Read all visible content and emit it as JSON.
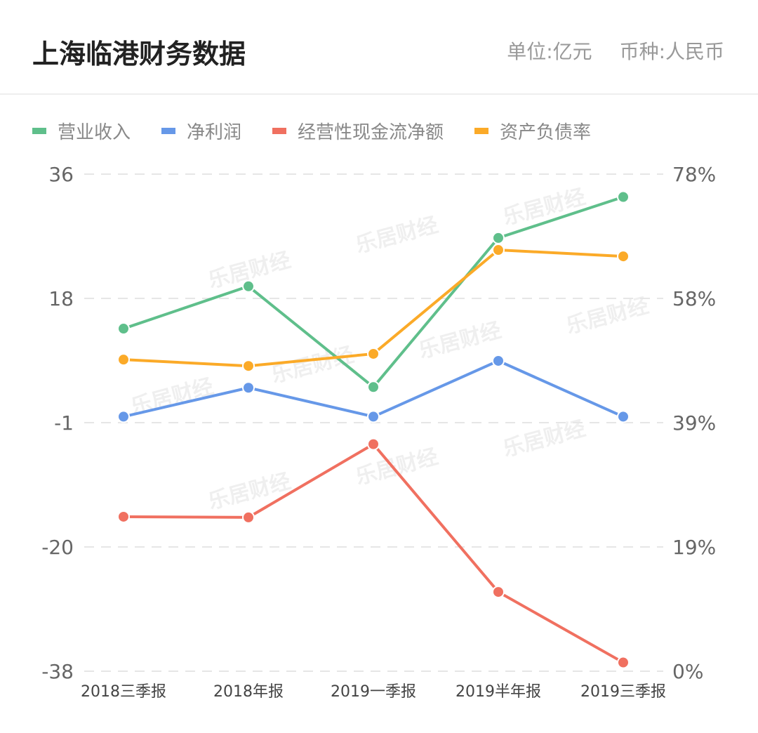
{
  "header": {
    "title": "上海临港财务数据",
    "unit": "单位:亿元",
    "currency": "币种:人民币"
  },
  "watermark": "乐居财经",
  "chart_data": {
    "type": "line",
    "categories": [
      "2018三季报",
      "2018年报",
      "2019一季报",
      "2019半年报",
      "2019三季报"
    ],
    "left_axis": {
      "ticks": [
        "36",
        "18",
        "-1",
        "-20",
        "-38"
      ],
      "ylim": [
        -38,
        36
      ]
    },
    "right_axis": {
      "ticks": [
        "78%",
        "58%",
        "39%",
        "19%",
        "0%"
      ],
      "ylim": [
        0,
        78
      ]
    },
    "grid": true,
    "legend": "top-left",
    "series": [
      {
        "name": "营业收入",
        "axis": "left",
        "color": "#5fbf8b",
        "values": [
          13.0,
          19.3,
          4.3,
          26.5,
          32.6
        ]
      },
      {
        "name": "净利润",
        "axis": "left",
        "color": "#6698e8",
        "values": [
          -0.1,
          4.2,
          -0.1,
          8.2,
          -0.1
        ]
      },
      {
        "name": "经营性现金流净额",
        "axis": "left",
        "color": "#f07060",
        "values": [
          -15.0,
          -15.1,
          -4.2,
          -26.2,
          -36.7
        ]
      },
      {
        "name": "资产负债率",
        "axis": "right",
        "color": "#fbaa28",
        "values": [
          48.9,
          47.9,
          49.8,
          66.1,
          65.1
        ]
      }
    ]
  }
}
